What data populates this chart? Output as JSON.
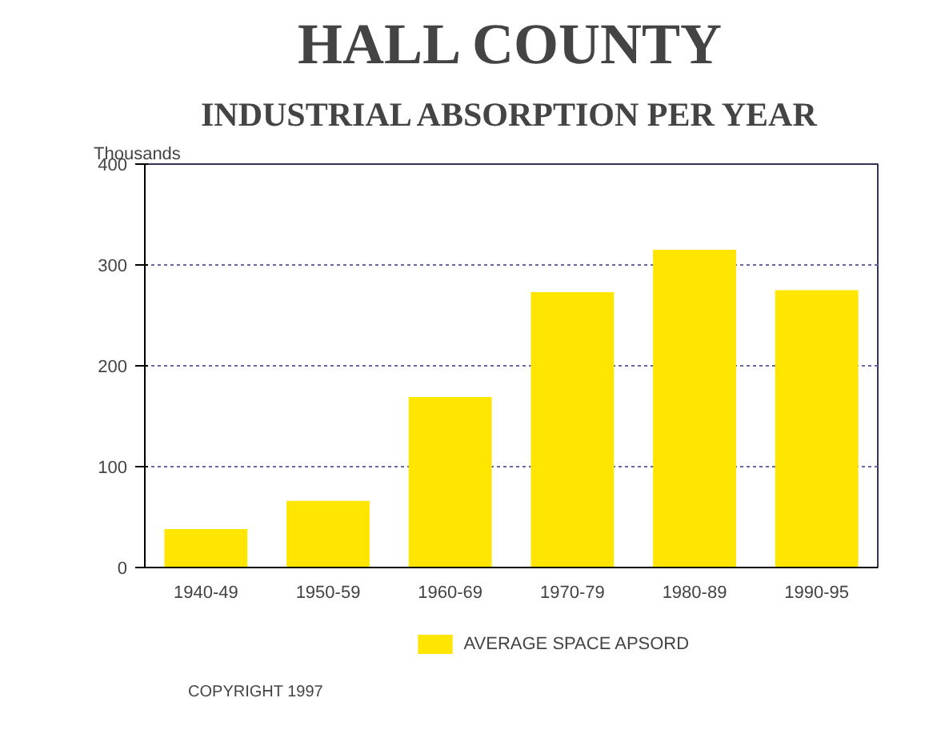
{
  "chart_data": {
    "type": "bar",
    "title": "HALL COUNTY",
    "subtitle": "INDUSTRIAL ABSORPTION PER YEAR",
    "ylabel": "Thousands",
    "categories": [
      "1940-49",
      "1950-59",
      "1960-69",
      "1970-79",
      "1980-89",
      "1990-95"
    ],
    "series": [
      {
        "name": "AVERAGE SPACE APSORD",
        "color": "#ffe600",
        "values": [
          38,
          66,
          169,
          273,
          315,
          275
        ]
      }
    ],
    "ylim": [
      0,
      400
    ],
    "yticks": [
      0,
      100,
      200,
      300,
      400
    ],
    "grid": "y",
    "legend": "bottom",
    "annotations": [
      "COPYRIGHT 1997"
    ]
  }
}
